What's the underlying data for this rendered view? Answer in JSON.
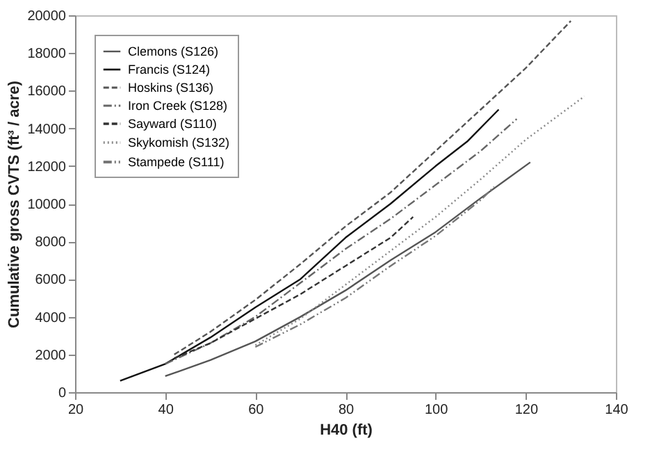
{
  "chart_data": {
    "type": "line",
    "xlabel": "H40 (ft)",
    "ylabel": "Cumulative gross CVTS (ft³ / acre)",
    "xlim": [
      20,
      140
    ],
    "xticks": [
      20,
      40,
      60,
      80,
      100,
      120,
      140
    ],
    "ylim": [
      0,
      20000
    ],
    "yticks": [
      0,
      2000,
      4000,
      6000,
      8000,
      10000,
      12000,
      14000,
      16000,
      18000,
      20000
    ],
    "grid": false,
    "legend": "top left",
    "marker": "none",
    "series": [
      {
        "name": "Clemons (S126)",
        "color": "#555555",
        "line_style": "solid",
        "x": [
          40,
          50,
          60,
          70,
          80,
          90,
          100,
          110,
          121
        ],
        "values": [
          850,
          1700,
          2700,
          4000,
          5400,
          7000,
          8500,
          10300,
          12200
        ]
      },
      {
        "name": "Francis (S124)",
        "color": "#111111",
        "line_style": "solid",
        "x": [
          30,
          40,
          50,
          60,
          70,
          80,
          90,
          100,
          107,
          114
        ],
        "values": [
          600,
          1500,
          2900,
          4500,
          6000,
          8200,
          10000,
          12000,
          13300,
          15000
        ]
      },
      {
        "name": "Hoskins (S136)",
        "color": "#555555",
        "line_style": "dashed",
        "x": [
          42,
          50,
          60,
          70,
          80,
          90,
          100,
          110,
          120,
          130
        ],
        "values": [
          2000,
          3200,
          4900,
          6800,
          8800,
          10600,
          12800,
          15000,
          17200,
          19700
        ]
      },
      {
        "name": "Iron Creek (S128)",
        "color": "#666666",
        "line_style": "dashdot",
        "x": [
          40,
          50,
          60,
          70,
          80,
          90,
          100,
          110,
          118
        ],
        "values": [
          1500,
          2600,
          4000,
          5800,
          7600,
          9200,
          11000,
          12800,
          14500
        ]
      },
      {
        "name": "Sayward (S110)",
        "color": "#333333",
        "line_style": "dashed",
        "x": [
          42,
          50,
          60,
          70,
          80,
          90,
          95
        ],
        "values": [
          1800,
          2600,
          3900,
          5200,
          6700,
          8200,
          9300
        ]
      },
      {
        "name": "Skykomish (S132)",
        "color": "#888888",
        "line_style": "dotted",
        "x": [
          60,
          70,
          80,
          90,
          100,
          110,
          120,
          133
        ],
        "values": [
          2500,
          3900,
          5700,
          7500,
          9300,
          11300,
          13400,
          15700
        ]
      },
      {
        "name": "Stampede (S111)",
        "color": "#777777",
        "line_style": "dashdotdot",
        "x": [
          60,
          70,
          80,
          90,
          100,
          110,
          113
        ],
        "values": [
          2400,
          3600,
          5000,
          6700,
          8300,
          10200,
          10900
        ]
      }
    ]
  }
}
